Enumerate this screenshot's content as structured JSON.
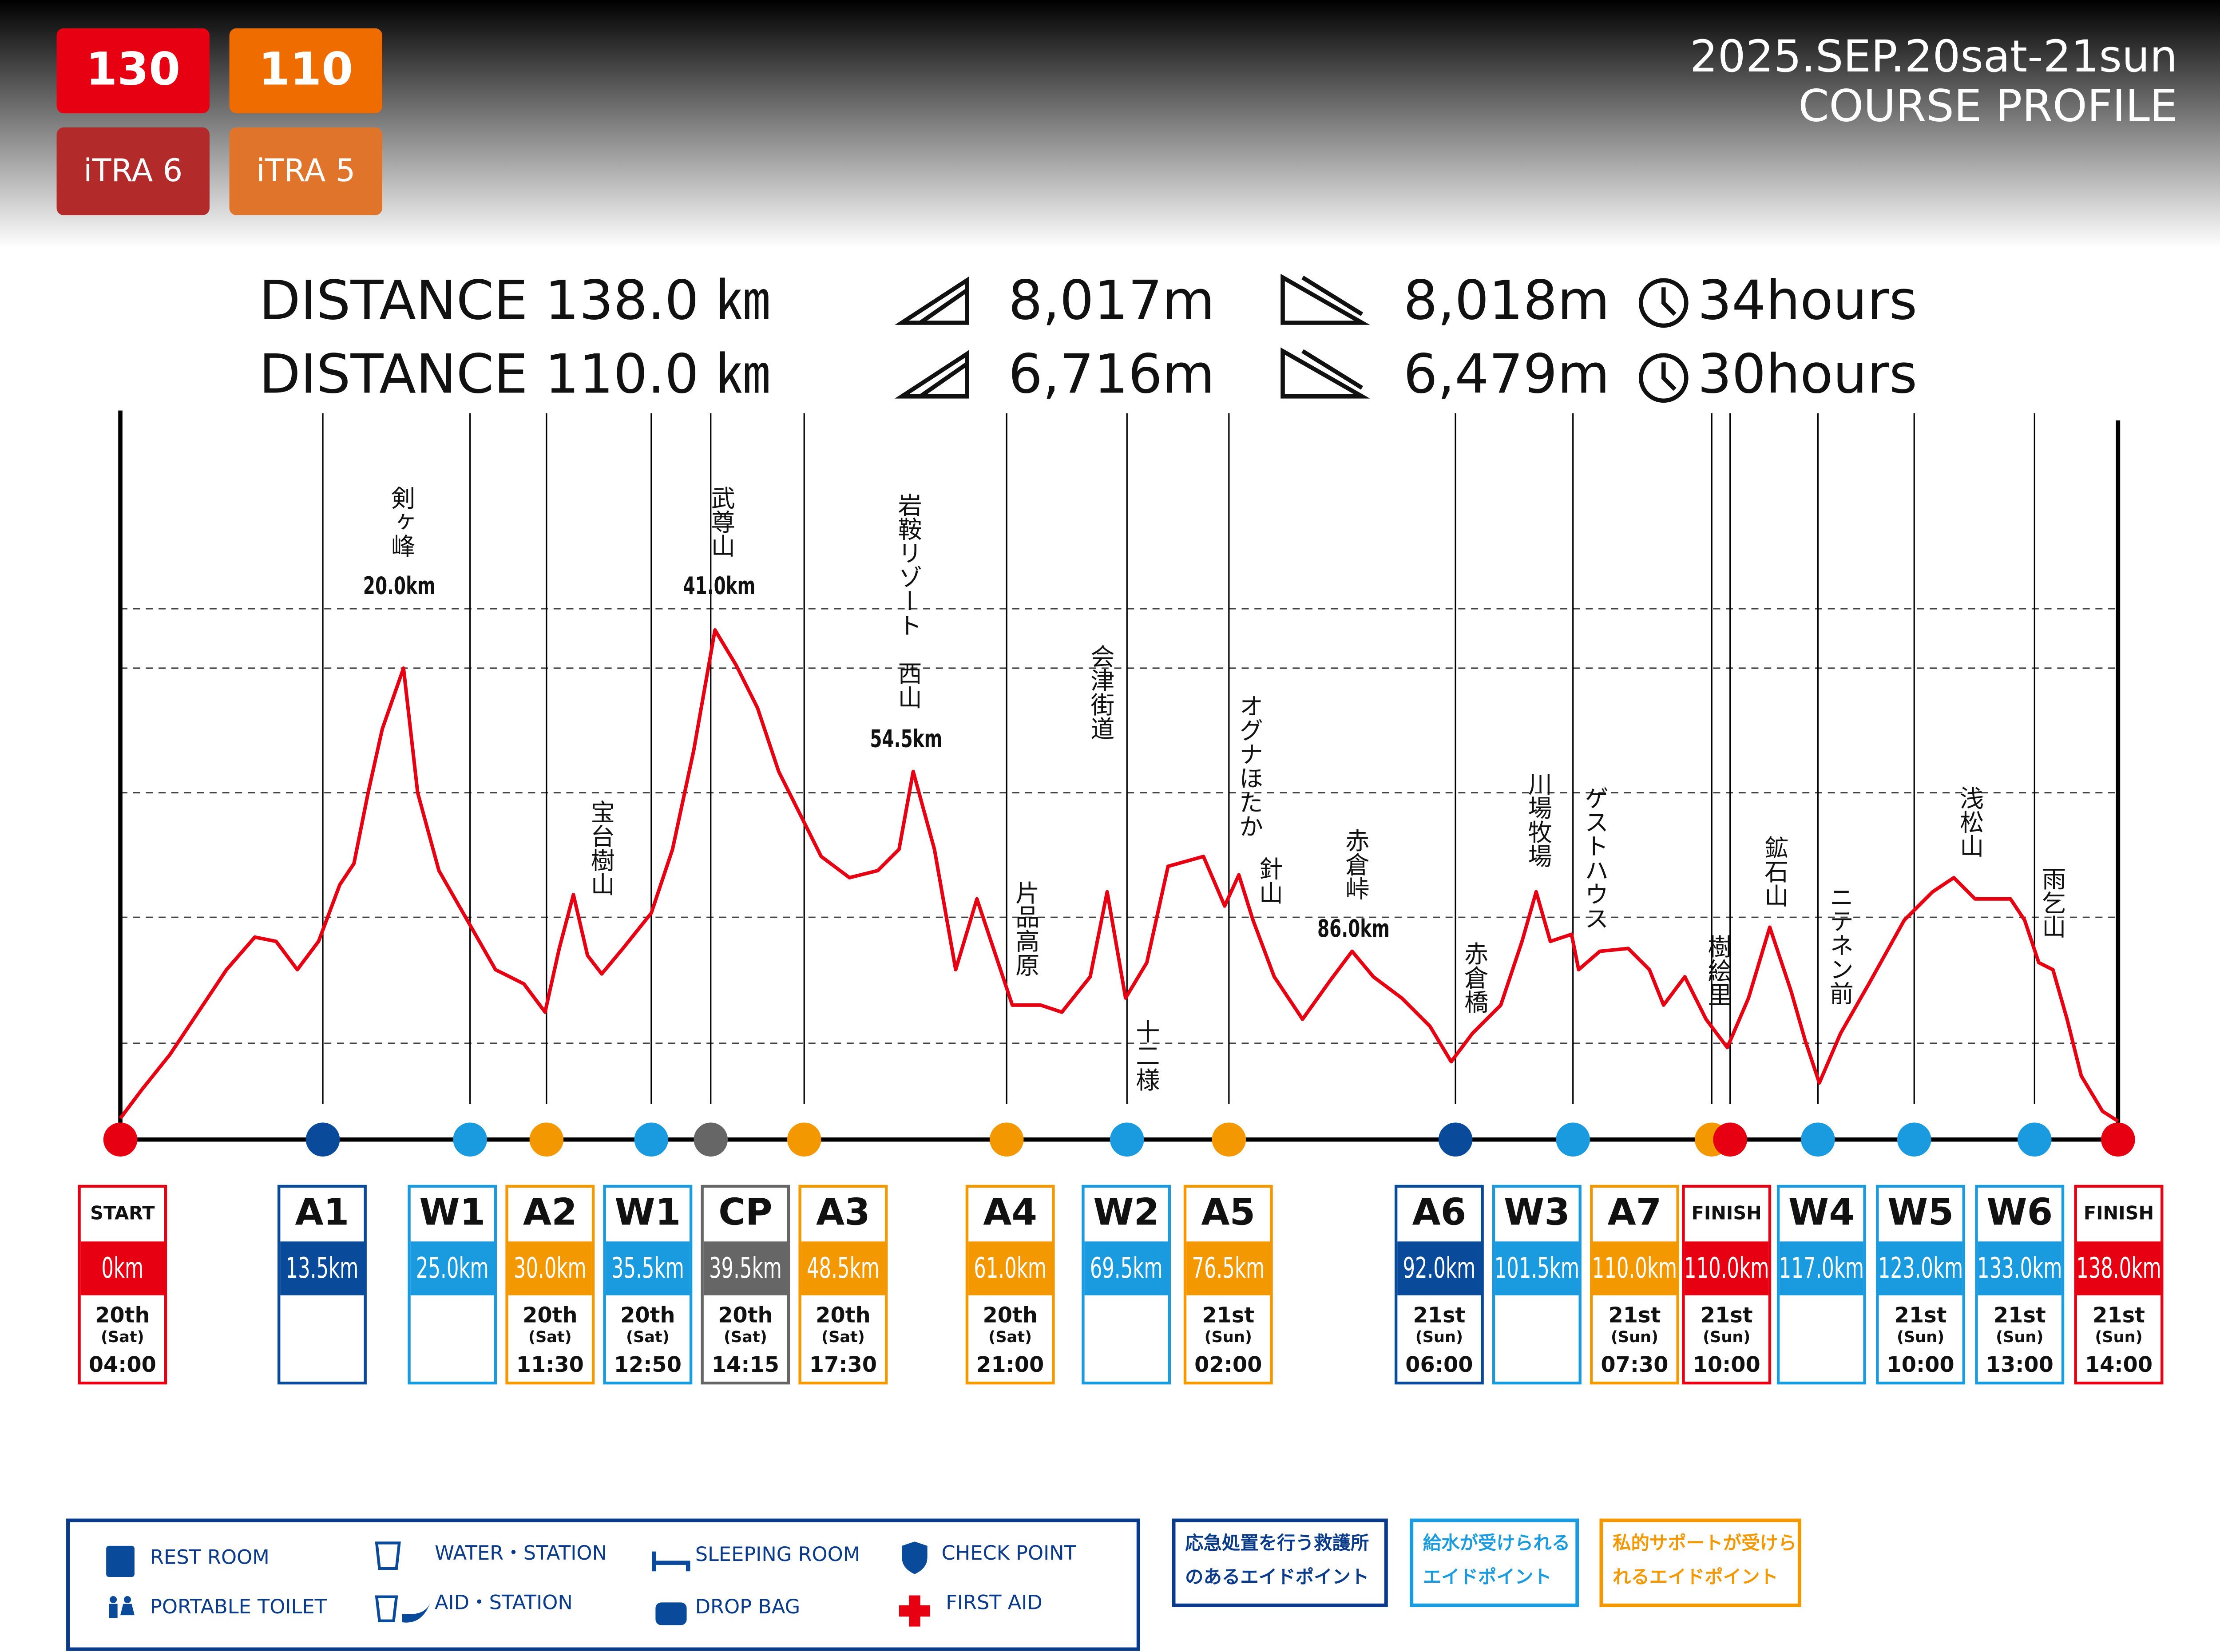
{
  "header": {
    "badges": [
      {
        "distance": "130",
        "itra": "iTRA 6",
        "color": "#e60012",
        "itra_color": "#b22a2a"
      },
      {
        "distance": "110",
        "itra": "iTRA 5",
        "color": "#ef6c00",
        "itra_color": "#e0742a"
      }
    ],
    "date": "2025.SEP.20sat-21sun",
    "title": "COURSE PROFILE"
  },
  "stats": [
    {
      "distance": "DISTANCE 138.0 ㎞",
      "gain": "8,017m",
      "loss": "8,018m",
      "time": "34hours"
    },
    {
      "distance": "DISTANCE 110.0 ㎞",
      "gain": "6,716m",
      "loss": "6,479m",
      "time": "30hours"
    }
  ],
  "peaks": [
    {
      "name": "剣ヶ峰",
      "km": "20.0km"
    },
    {
      "name": "宝台樹山"
    },
    {
      "name": "武尊山",
      "km": "41.0km"
    },
    {
      "name": "岩鞍リゾート　西山",
      "km": "54.5km"
    },
    {
      "name": "片品高原"
    },
    {
      "name": "会津街道"
    },
    {
      "name": "十二様"
    },
    {
      "name": "オグナほたか"
    },
    {
      "name": "針山"
    },
    {
      "name": "赤倉峠",
      "km": "86.0km"
    },
    {
      "name": "赤倉橋"
    },
    {
      "name": "川場牧場"
    },
    {
      "name": "ゲストハウス"
    },
    {
      "name": "樹絵里"
    },
    {
      "name": "鉱石山"
    },
    {
      "name": "ニテネン前"
    },
    {
      "name": "浅松山"
    },
    {
      "name": "雨乞山"
    }
  ],
  "stations": [
    {
      "code": "START",
      "km": "0km",
      "day": "20th",
      "dow": "(Sat)",
      "time": "04:00",
      "color": "#e60012"
    },
    {
      "code": "A1",
      "km": "13.5km",
      "color": "#0a4a9a"
    },
    {
      "code": "W1",
      "km": "25.0km",
      "color": "#1a9be0"
    },
    {
      "code": "A2",
      "km": "30.0km",
      "day": "20th",
      "dow": "(Sat)",
      "time": "11:30",
      "color": "#f39800"
    },
    {
      "code": "W1",
      "km": "35.5km",
      "day": "20th",
      "dow": "(Sat)",
      "time": "12:50",
      "color": "#1a9be0"
    },
    {
      "code": "CP",
      "km": "39.5km",
      "day": "20th",
      "dow": "(Sat)",
      "time": "14:15",
      "color": "#666666"
    },
    {
      "code": "A3",
      "km": "48.5km",
      "day": "20th",
      "dow": "(Sat)",
      "time": "17:30",
      "color": "#f39800"
    },
    {
      "code": "A4",
      "km": "61.0km",
      "day": "20th",
      "dow": "(Sat)",
      "time": "21:00",
      "color": "#f39800"
    },
    {
      "code": "W2",
      "km": "69.5km",
      "color": "#1a9be0"
    },
    {
      "code": "A5",
      "km": "76.5km",
      "day": "21st",
      "dow": "(Sun)",
      "time": "02:00",
      "color": "#f39800"
    },
    {
      "code": "A6",
      "km": "92.0km",
      "day": "21st",
      "dow": "(Sun)",
      "time": "06:00",
      "color": "#0a4a9a"
    },
    {
      "code": "W3",
      "km": "101.5km",
      "color": "#1a9be0"
    },
    {
      "code": "A7",
      "km": "110.0km",
      "day": "21st",
      "dow": "(Sun)",
      "time": "07:30",
      "color": "#f39800"
    },
    {
      "code": "FINISH",
      "km": "110.0km",
      "day": "21st",
      "dow": "(Sun)",
      "time": "10:00",
      "color": "#e60012"
    },
    {
      "code": "W4",
      "km": "117.0km",
      "color": "#1a9be0"
    },
    {
      "code": "W5",
      "km": "123.0km",
      "day": "21st",
      "dow": "(Sun)",
      "time": "10:00",
      "color": "#1a9be0"
    },
    {
      "code": "W6",
      "km": "133.0km",
      "day": "21st",
      "dow": "(Sun)",
      "time": "13:00",
      "color": "#1a9be0"
    },
    {
      "code": "FINISH",
      "km": "138.0km",
      "day": "21st",
      "dow": "(Sun)",
      "time": "14:00",
      "color": "#e60012"
    }
  ],
  "legend": {
    "items": [
      "REST ROOM",
      "PORTABLE TOILET",
      "WATER・STATION",
      "AID・STATION",
      "SLEEPING ROOM",
      "DROP BAG",
      "CHECK POINT",
      "FIRST AID"
    ]
  },
  "notes": [
    {
      "lines": [
        "応急処置を行う救護所",
        "のあるエイドポイント"
      ],
      "color": "#0a3a8a"
    },
    {
      "lines": [
        "給水が受けられる",
        "エイドポイント"
      ],
      "color": "#1a9be0"
    },
    {
      "lines": [
        "私的サポートが受けら",
        "れるエイドポイント"
      ],
      "color": "#f39800"
    }
  ]
}
